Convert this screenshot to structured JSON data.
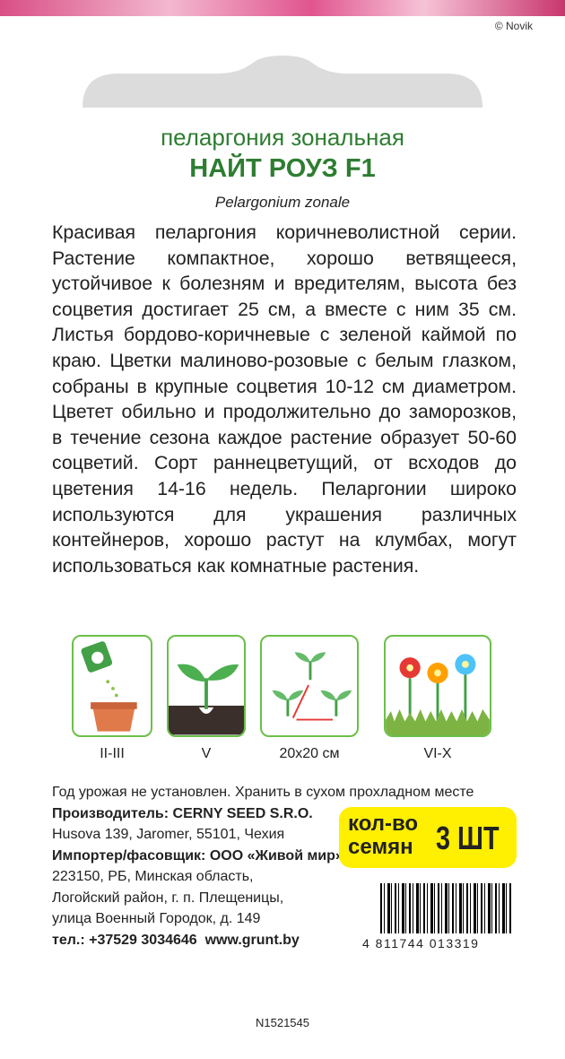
{
  "copyright": "© Novik",
  "title": {
    "line1": "пеларгония зональная",
    "line2": "НАЙТ РОУЗ F1",
    "latin": "Pelargonium zonale"
  },
  "description": "Красивая пеларгония коричневолистной серии. Растение компактное, хорошо ветвящееся, устойчивое к болезням и вредителям, высота без соцветия достигает 25 см, а вместе с ним 35 см. Листья бордово-коричневые с зеленой каймой по краю. Цветки малиново-розовые с белым глазком, собраны в крупные соцветия 10-12 см диаметром. Цветет обильно и продолжительно до заморозков, в течение сезона каждое растение образует 50-60 соцветий. Сорт раннецветущий, от всходов до цветения 14-16 недель. Пеларгонии широко используются для украшения различных контейнеров, хорошо растут на клумбах, могут использоваться как комнатные растения.",
  "icons": [
    {
      "label": "II-III"
    },
    {
      "label": "V"
    },
    {
      "label": "20x20 см"
    },
    {
      "label": "VI-X"
    }
  ],
  "info": [
    "Год урожая не установлен. Хранить в сухом прохладном месте",
    "Производитель: CERNY SEED S.R.O.",
    "Husova 139, Jaromer, 55101, Чехия",
    "Импортер/фасовщик: ООО «Живой мир»",
    "223150, РБ, Минская область,",
    "Логойский район, г. п. Плещеницы,",
    "улица Военный Городок, д. 149",
    "тел.: +37529 3034646  www.grunt.by"
  ],
  "quantity": {
    "line1": "кол-во",
    "line2": "семян",
    "count": "3 ШТ"
  },
  "barcode": "4 811744 013319",
  "code": "N1521545"
}
